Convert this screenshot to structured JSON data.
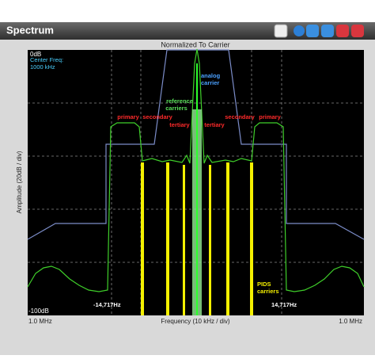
{
  "window": {
    "title": "Spectrum"
  },
  "plot": {
    "title": "Normalized To Carrier",
    "y_axis": {
      "label": "Amplitude (20dB / div)",
      "top": "0dB",
      "bottom": "-100dB"
    },
    "x_axis": {
      "label": "Frequency (10 kHz / div)",
      "left": "1.0 MHz",
      "right": "1.0 MHz"
    },
    "annotations": {
      "center_freq": [
        "Center Freq:",
        "1000 kHz"
      ],
      "analog_carrier": [
        "analog",
        "carrier"
      ],
      "reference_carriers": [
        "reference",
        "carriers"
      ],
      "primary_left": "primary",
      "secondary_left": "secondary",
      "tertiary_left": "tertiary",
      "tertiary_right": "tertiary",
      "secondary_right": "secondary",
      "primary_right": "primary",
      "pids_carriers": [
        "PIDS",
        "carriers"
      ],
      "offset_left": "-14,717Hz",
      "offset_right": "14,717Hz"
    }
  }
}
